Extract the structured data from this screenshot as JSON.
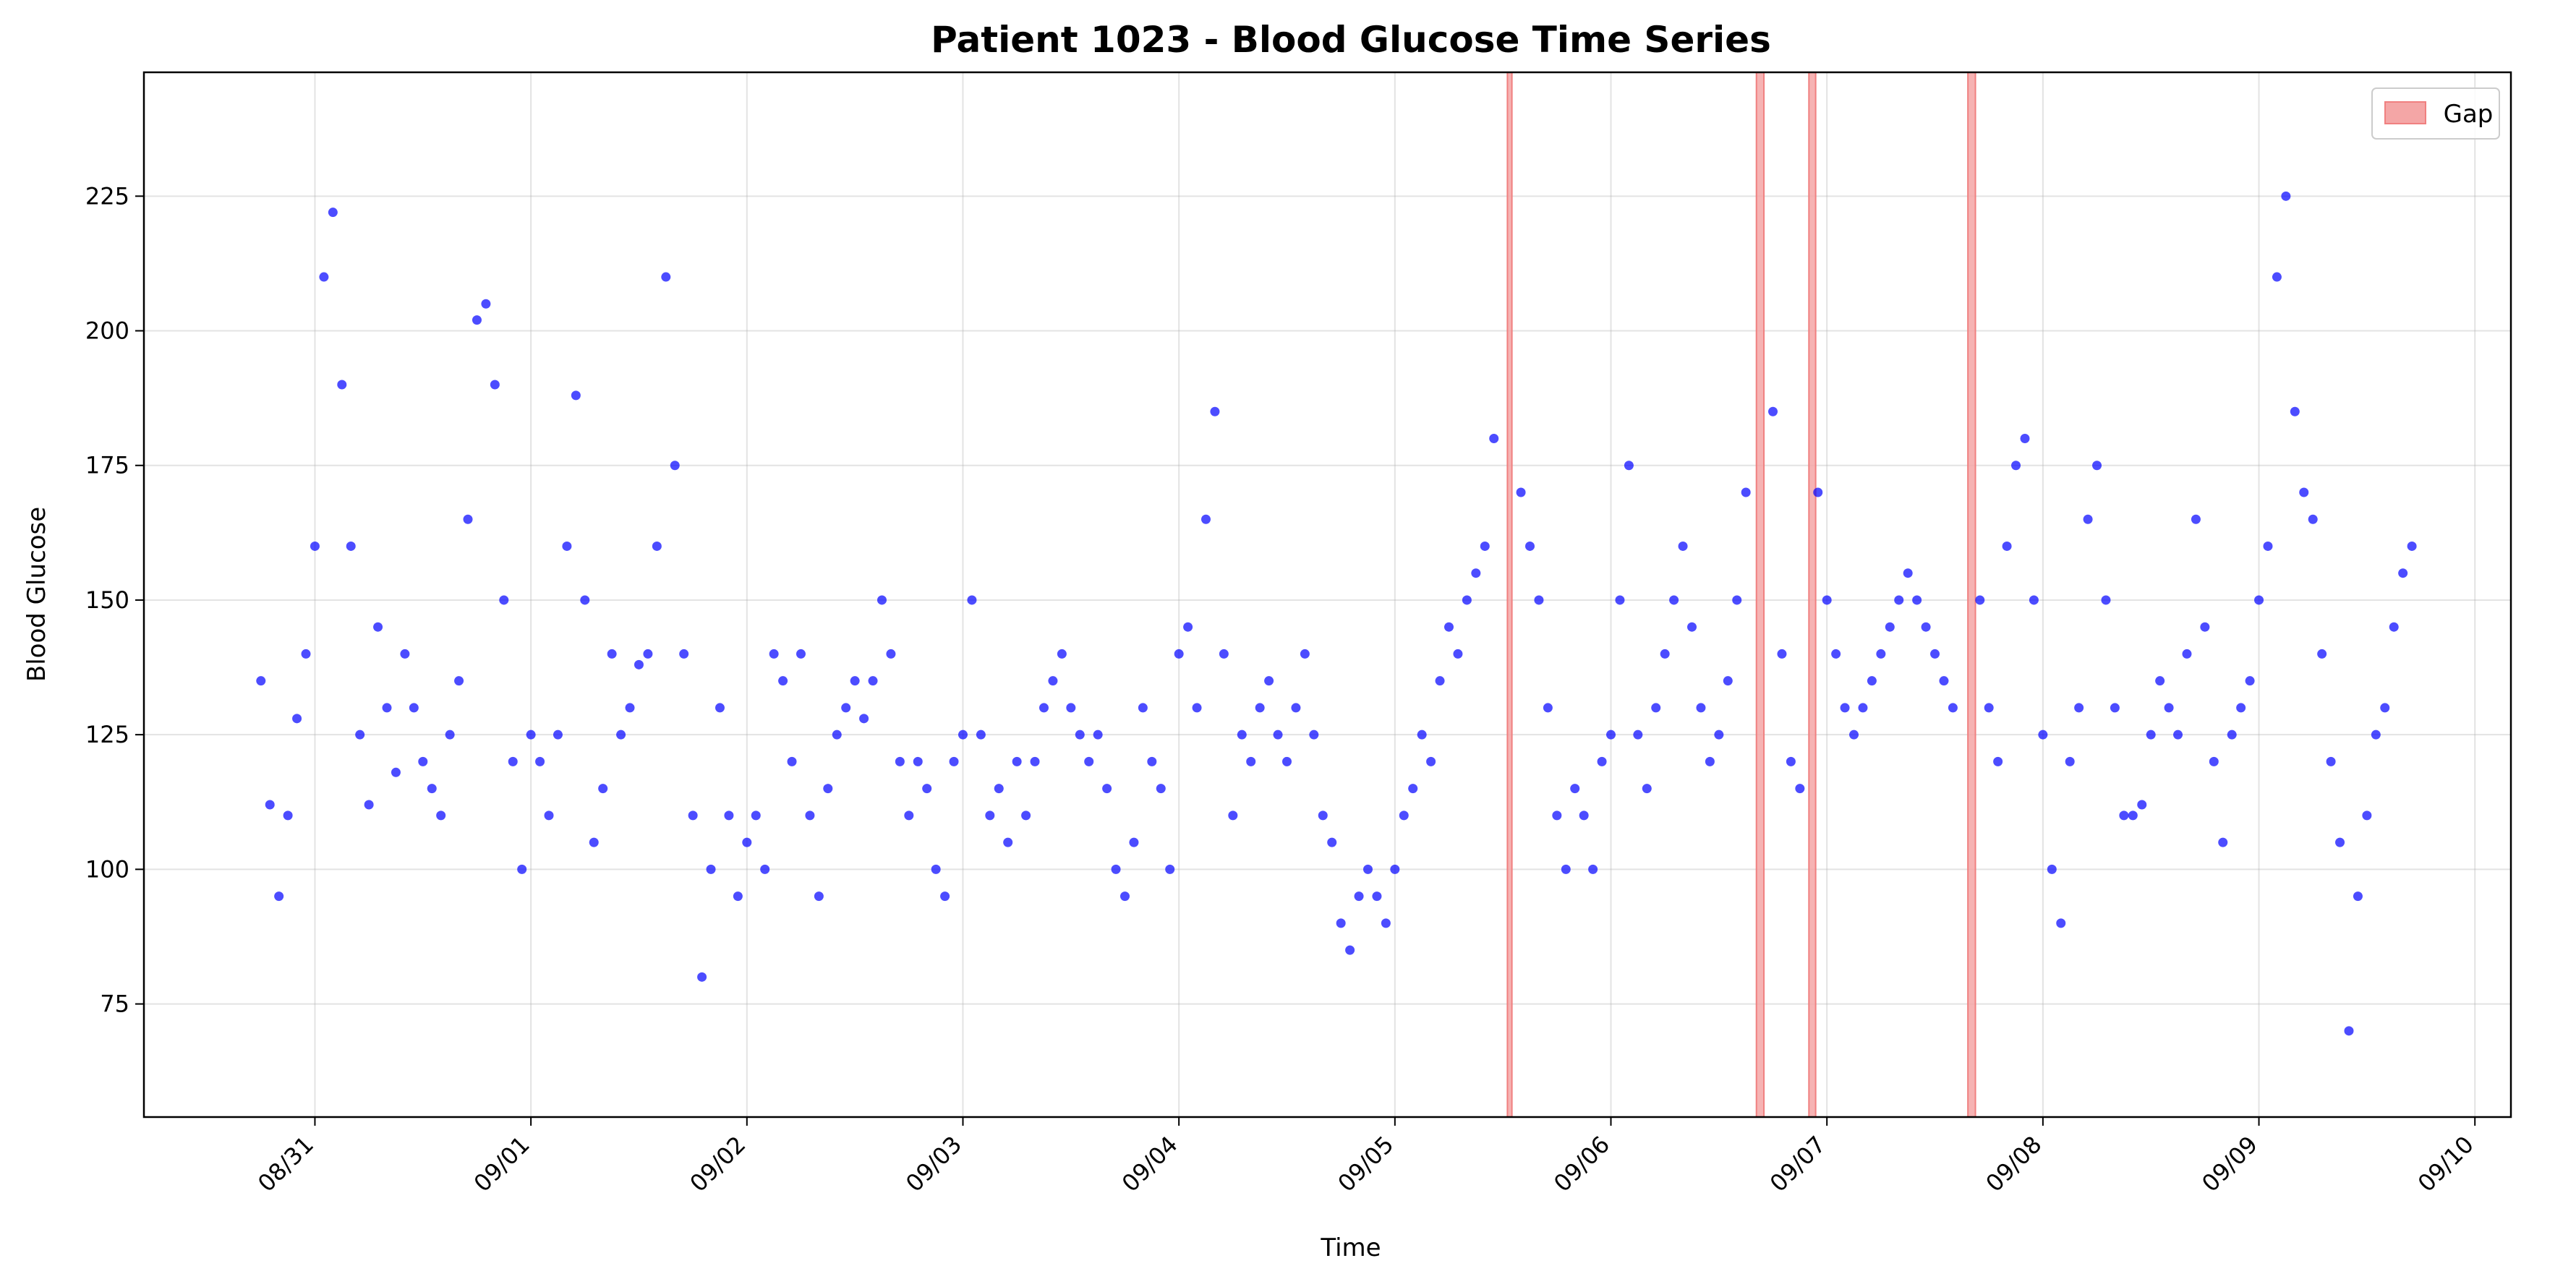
{
  "chart_data": {
    "type": "scatter",
    "title": "Patient 1023 - Blood Glucose Time Series",
    "xlabel": "Time",
    "ylabel": "Blood Glucose",
    "xlim": [
      "08/30 05:00",
      "09/10 04:00"
    ],
    "ylim": [
      54,
      248
    ],
    "x_ticks": [
      "08/31",
      "09/01",
      "09/02",
      "09/03",
      "09/04",
      "09/05",
      "09/06",
      "09/07",
      "09/08",
      "09/09",
      "09/10"
    ],
    "y_ticks": [
      75,
      100,
      125,
      150,
      175,
      200,
      225
    ],
    "grid": true,
    "legend": {
      "position": "top-right",
      "entries": [
        {
          "label": "Gap",
          "color": "#f4a6a6"
        }
      ]
    },
    "point_color": "#0000ff",
    "gap_color": "#f4a6a6",
    "gaps": [
      {
        "start": "09/05 12:30",
        "end": "09/05 13:00"
      },
      {
        "start": "09/06 16:10",
        "end": "09/06 17:00"
      },
      {
        "start": "09/06 22:00",
        "end": "09/06 22:45"
      },
      {
        "start": "09/07 15:40",
        "end": "09/07 16:30"
      }
    ],
    "series": [
      {
        "points": [
          [
            "08/30 18:00",
            135
          ],
          [
            "08/30 19:00",
            112
          ],
          [
            "08/30 20:00",
            95
          ],
          [
            "08/30 21:00",
            110
          ],
          [
            "08/30 22:00",
            128
          ],
          [
            "08/30 23:00",
            140
          ],
          [
            "08/31 00:00",
            160
          ],
          [
            "08/31 01:00",
            210
          ],
          [
            "08/31 02:00",
            222
          ],
          [
            "08/31 03:00",
            190
          ],
          [
            "08/31 04:00",
            160
          ],
          [
            "08/31 05:00",
            125
          ],
          [
            "08/31 06:00",
            112
          ],
          [
            "08/31 07:00",
            145
          ],
          [
            "08/31 08:00",
            130
          ],
          [
            "08/31 09:00",
            118
          ],
          [
            "08/31 10:00",
            140
          ],
          [
            "08/31 11:00",
            130
          ],
          [
            "08/31 12:00",
            120
          ],
          [
            "08/31 13:00",
            115
          ],
          [
            "08/31 14:00",
            110
          ],
          [
            "08/31 15:00",
            125
          ],
          [
            "08/31 16:00",
            135
          ],
          [
            "08/31 17:00",
            165
          ],
          [
            "08/31 18:00",
            202
          ],
          [
            "08/31 19:00",
            205
          ],
          [
            "08/31 20:00",
            190
          ],
          [
            "08/31 21:00",
            150
          ],
          [
            "08/31 22:00",
            120
          ],
          [
            "08/31 23:00",
            100
          ],
          [
            "09/01 00:00",
            125
          ],
          [
            "09/01 01:00",
            120
          ],
          [
            "09/01 02:00",
            110
          ],
          [
            "09/01 03:00",
            125
          ],
          [
            "09/01 04:00",
            160
          ],
          [
            "09/01 05:00",
            188
          ],
          [
            "09/01 06:00",
            150
          ],
          [
            "09/01 07:00",
            105
          ],
          [
            "09/01 08:00",
            115
          ],
          [
            "09/01 09:00",
            140
          ],
          [
            "09/01 10:00",
            125
          ],
          [
            "09/01 11:00",
            130
          ],
          [
            "09/01 12:00",
            138
          ],
          [
            "09/01 13:00",
            140
          ],
          [
            "09/01 14:00",
            160
          ],
          [
            "09/01 15:00",
            210
          ],
          [
            "09/01 16:00",
            175
          ],
          [
            "09/01 17:00",
            140
          ],
          [
            "09/01 18:00",
            110
          ],
          [
            "09/01 19:00",
            80
          ],
          [
            "09/01 20:00",
            100
          ],
          [
            "09/01 21:00",
            130
          ],
          [
            "09/01 22:00",
            110
          ],
          [
            "09/01 23:00",
            95
          ],
          [
            "09/02 00:00",
            105
          ],
          [
            "09/02 01:00",
            110
          ],
          [
            "09/02 02:00",
            100
          ],
          [
            "09/02 03:00",
            140
          ],
          [
            "09/02 04:00",
            135
          ],
          [
            "09/02 05:00",
            120
          ],
          [
            "09/02 06:00",
            140
          ],
          [
            "09/02 07:00",
            110
          ],
          [
            "09/02 08:00",
            95
          ],
          [
            "09/02 09:00",
            115
          ],
          [
            "09/02 10:00",
            125
          ],
          [
            "09/02 11:00",
            130
          ],
          [
            "09/02 12:00",
            135
          ],
          [
            "09/02 13:00",
            128
          ],
          [
            "09/02 14:00",
            135
          ],
          [
            "09/02 15:00",
            150
          ],
          [
            "09/02 16:00",
            140
          ],
          [
            "09/02 17:00",
            120
          ],
          [
            "09/02 18:00",
            110
          ],
          [
            "09/02 19:00",
            120
          ],
          [
            "09/02 20:00",
            115
          ],
          [
            "09/02 21:00",
            100
          ],
          [
            "09/02 22:00",
            95
          ],
          [
            "09/02 23:00",
            120
          ],
          [
            "09/03 00:00",
            125
          ],
          [
            "09/03 01:00",
            150
          ],
          [
            "09/03 02:00",
            125
          ],
          [
            "09/03 03:00",
            110
          ],
          [
            "09/03 04:00",
            115
          ],
          [
            "09/03 05:00",
            105
          ],
          [
            "09/03 06:00",
            120
          ],
          [
            "09/03 07:00",
            110
          ],
          [
            "09/03 08:00",
            120
          ],
          [
            "09/03 09:00",
            130
          ],
          [
            "09/03 10:00",
            135
          ],
          [
            "09/03 11:00",
            140
          ],
          [
            "09/03 12:00",
            130
          ],
          [
            "09/03 13:00",
            125
          ],
          [
            "09/03 14:00",
            120
          ],
          [
            "09/03 15:00",
            125
          ],
          [
            "09/03 16:00",
            115
          ],
          [
            "09/03 17:00",
            100
          ],
          [
            "09/03 18:00",
            95
          ],
          [
            "09/03 19:00",
            105
          ],
          [
            "09/03 20:00",
            130
          ],
          [
            "09/03 21:00",
            120
          ],
          [
            "09/03 22:00",
            115
          ],
          [
            "09/03 23:00",
            100
          ],
          [
            "09/04 00:00",
            140
          ],
          [
            "09/04 01:00",
            145
          ],
          [
            "09/04 02:00",
            130
          ],
          [
            "09/04 03:00",
            165
          ],
          [
            "09/04 04:00",
            185
          ],
          [
            "09/04 05:00",
            140
          ],
          [
            "09/04 06:00",
            110
          ],
          [
            "09/04 07:00",
            125
          ],
          [
            "09/04 08:00",
            120
          ],
          [
            "09/04 09:00",
            130
          ],
          [
            "09/04 10:00",
            135
          ],
          [
            "09/04 11:00",
            125
          ],
          [
            "09/04 12:00",
            120
          ],
          [
            "09/04 13:00",
            130
          ],
          [
            "09/04 14:00",
            140
          ],
          [
            "09/04 15:00",
            125
          ],
          [
            "09/04 16:00",
            110
          ],
          [
            "09/04 17:00",
            105
          ],
          [
            "09/04 18:00",
            90
          ],
          [
            "09/04 19:00",
            85
          ],
          [
            "09/04 20:00",
            95
          ],
          [
            "09/04 21:00",
            100
          ],
          [
            "09/04 22:00",
            95
          ],
          [
            "09/04 23:00",
            90
          ],
          [
            "09/05 00:00",
            100
          ],
          [
            "09/05 01:00",
            110
          ],
          [
            "09/05 02:00",
            115
          ],
          [
            "09/05 03:00",
            125
          ],
          [
            "09/05 04:00",
            120
          ],
          [
            "09/05 05:00",
            135
          ],
          [
            "09/05 06:00",
            145
          ],
          [
            "09/05 07:00",
            140
          ],
          [
            "09/05 08:00",
            150
          ],
          [
            "09/05 09:00",
            155
          ],
          [
            "09/05 10:00",
            160
          ],
          [
            "09/05 11:00",
            180
          ],
          [
            "09/05 14:00",
            170
          ],
          [
            "09/05 15:00",
            160
          ],
          [
            "09/05 16:00",
            150
          ],
          [
            "09/05 17:00",
            130
          ],
          [
            "09/05 18:00",
            110
          ],
          [
            "09/05 19:00",
            100
          ],
          [
            "09/05 20:00",
            115
          ],
          [
            "09/05 21:00",
            110
          ],
          [
            "09/05 22:00",
            100
          ],
          [
            "09/05 23:00",
            120
          ],
          [
            "09/06 00:00",
            125
          ],
          [
            "09/06 01:00",
            150
          ],
          [
            "09/06 02:00",
            175
          ],
          [
            "09/06 03:00",
            125
          ],
          [
            "09/06 04:00",
            115
          ],
          [
            "09/06 05:00",
            130
          ],
          [
            "09/06 06:00",
            140
          ],
          [
            "09/06 07:00",
            150
          ],
          [
            "09/06 08:00",
            160
          ],
          [
            "09/06 09:00",
            145
          ],
          [
            "09/06 10:00",
            130
          ],
          [
            "09/06 11:00",
            120
          ],
          [
            "09/06 12:00",
            125
          ],
          [
            "09/06 13:00",
            135
          ],
          [
            "09/06 14:00",
            150
          ],
          [
            "09/06 15:00",
            170
          ],
          [
            "09/06 18:00",
            185
          ],
          [
            "09/06 19:00",
            140
          ],
          [
            "09/06 20:00",
            120
          ],
          [
            "09/06 21:00",
            115
          ],
          [
            "09/06 23:00",
            170
          ],
          [
            "09/07 00:00",
            150
          ],
          [
            "09/07 01:00",
            140
          ],
          [
            "09/07 02:00",
            130
          ],
          [
            "09/07 03:00",
            125
          ],
          [
            "09/07 04:00",
            130
          ],
          [
            "09/07 05:00",
            135
          ],
          [
            "09/07 06:00",
            140
          ],
          [
            "09/07 07:00",
            145
          ],
          [
            "09/07 08:00",
            150
          ],
          [
            "09/07 09:00",
            155
          ],
          [
            "09/07 10:00",
            150
          ],
          [
            "09/07 11:00",
            145
          ],
          [
            "09/07 12:00",
            140
          ],
          [
            "09/07 13:00",
            135
          ],
          [
            "09/07 14:00",
            130
          ],
          [
            "09/07 17:00",
            150
          ],
          [
            "09/07 18:00",
            130
          ],
          [
            "09/07 19:00",
            120
          ],
          [
            "09/07 20:00",
            160
          ],
          [
            "09/07 21:00",
            175
          ],
          [
            "09/07 22:00",
            180
          ],
          [
            "09/07 23:00",
            150
          ],
          [
            "09/08 00:00",
            125
          ],
          [
            "09/08 01:00",
            100
          ],
          [
            "09/08 02:00",
            90
          ],
          [
            "09/08 03:00",
            120
          ],
          [
            "09/08 04:00",
            130
          ],
          [
            "09/08 05:00",
            165
          ],
          [
            "09/08 06:00",
            175
          ],
          [
            "09/08 07:00",
            150
          ],
          [
            "09/08 08:00",
            130
          ],
          [
            "09/08 09:00",
            110
          ],
          [
            "09/08 10:00",
            110
          ],
          [
            "09/08 11:00",
            112
          ],
          [
            "09/08 12:00",
            125
          ],
          [
            "09/08 13:00",
            135
          ],
          [
            "09/08 14:00",
            130
          ],
          [
            "09/08 15:00",
            125
          ],
          [
            "09/08 16:00",
            140
          ],
          [
            "09/08 17:00",
            165
          ],
          [
            "09/08 18:00",
            145
          ],
          [
            "09/08 19:00",
            120
          ],
          [
            "09/08 20:00",
            105
          ],
          [
            "09/08 21:00",
            125
          ],
          [
            "09/08 22:00",
            130
          ],
          [
            "09/08 23:00",
            135
          ],
          [
            "09/09 00:00",
            150
          ],
          [
            "09/09 01:00",
            160
          ],
          [
            "09/09 02:00",
            210
          ],
          [
            "09/09 03:00",
            225
          ],
          [
            "09/09 04:00",
            185
          ],
          [
            "09/09 05:00",
            170
          ],
          [
            "09/09 06:00",
            165
          ],
          [
            "09/09 07:00",
            140
          ],
          [
            "09/09 08:00",
            120
          ],
          [
            "09/09 09:00",
            105
          ],
          [
            "09/09 10:00",
            70
          ],
          [
            "09/09 11:00",
            95
          ],
          [
            "09/09 12:00",
            110
          ],
          [
            "09/09 13:00",
            125
          ],
          [
            "09/09 14:00",
            130
          ],
          [
            "09/09 15:00",
            145
          ],
          [
            "09/09 16:00",
            155
          ],
          [
            "09/09 17:00",
            160
          ]
        ]
      }
    ]
  }
}
